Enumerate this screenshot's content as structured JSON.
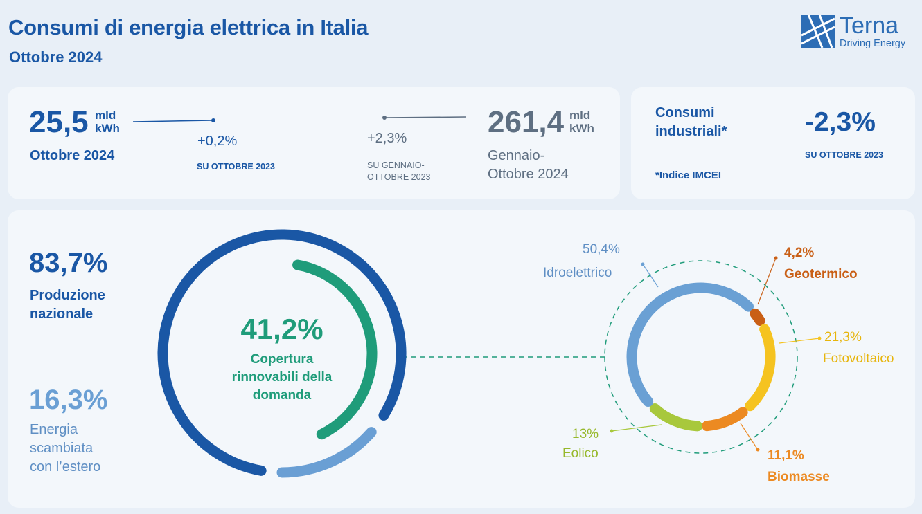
{
  "header": {
    "title": "Consumi di energia elettrica in Italia",
    "subtitle": "Ottobre 2024",
    "logo_name": "Terna",
    "logo_tagline": "Driving Energy"
  },
  "kpi_month": {
    "value": "25,5",
    "unit_line1": "mld",
    "unit_line2": "kWh",
    "period": "Ottobre 2024",
    "change": "+0,2%",
    "change_label": "SU OTTOBRE 2023"
  },
  "kpi_ytd": {
    "value": "261,4",
    "unit_line1": "mld",
    "unit_line2": "kWh",
    "period_line1": "Gennaio-",
    "period_line2": "Ottobre 2024",
    "change": "+2,3%",
    "change_label_line1": "SU GENNAIO-",
    "change_label_line2": "OTTOBRE 2023"
  },
  "industrial": {
    "label_line1": "Consumi",
    "label_line2": "industriali*",
    "value": "-2,3%",
    "value_label": "SU OTTOBRE 2023",
    "footnote": "*Indice IMCEI"
  },
  "supply": {
    "national_value": "83,7%",
    "national_label_line1": "Produzione",
    "national_label_line2": "nazionale",
    "exchange_value": "16,3%",
    "exchange_label_line1": "Energia",
    "exchange_label_line2": "scambiata",
    "exchange_label_line3": "con l’estero"
  },
  "renewables": {
    "value": "41,2%",
    "label_line1": "Copertura",
    "label_line2": "rinnovabili della",
    "label_line3": "domanda"
  },
  "colors": {
    "national": "#1a57a5",
    "exchange": "#6a9fd4",
    "renewables": "#1f9c7a",
    "hydro": "#6aa0d4",
    "geothermal": "#c95f15",
    "solar": "#f5c320",
    "biomass": "#ec8a22",
    "wind": "#a8c83c"
  },
  "chart_data": [
    {
      "type": "pie",
      "categories": [
        "Produzione nazionale",
        "Energia scambiata con l’estero"
      ],
      "values": [
        83.7,
        16.3
      ]
    },
    {
      "type": "pie",
      "categories": [
        "Copertura rinnovabili della domanda"
      ],
      "values": [
        41.2
      ]
    },
    {
      "type": "pie",
      "categories": [
        "Idroelettrico",
        "Geotermico",
        "Fotovoltaico",
        "Biomasse",
        "Eolico"
      ],
      "values": [
        50.4,
        4.2,
        21.3,
        11.1,
        13
      ],
      "value_labels": [
        "50,4%",
        "4,2%",
        "21,3%",
        "11,1%",
        "13%"
      ]
    }
  ]
}
